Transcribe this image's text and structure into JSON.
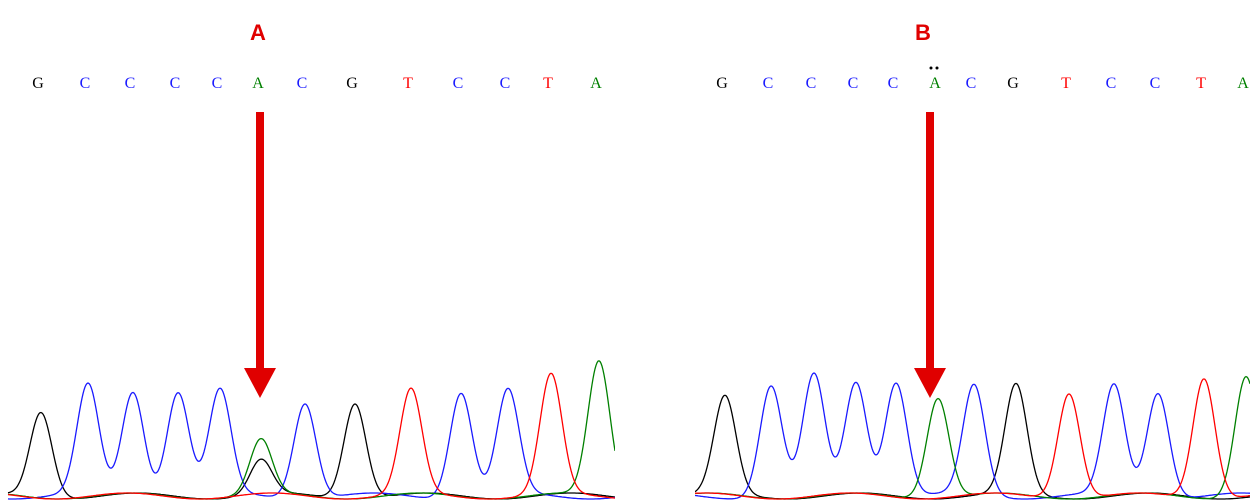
{
  "panels": [
    {
      "label": "A",
      "bases": [
        "G",
        "C",
        "C",
        "C",
        "C",
        "A",
        "C",
        "G",
        "T",
        "C",
        "C",
        "T",
        "A"
      ]
    },
    {
      "label": "B",
      "bases": [
        "G",
        "C",
        "C",
        "C",
        "C",
        "A",
        "C",
        "G",
        "T",
        "C",
        "C",
        "T",
        "A"
      ]
    }
  ]
}
